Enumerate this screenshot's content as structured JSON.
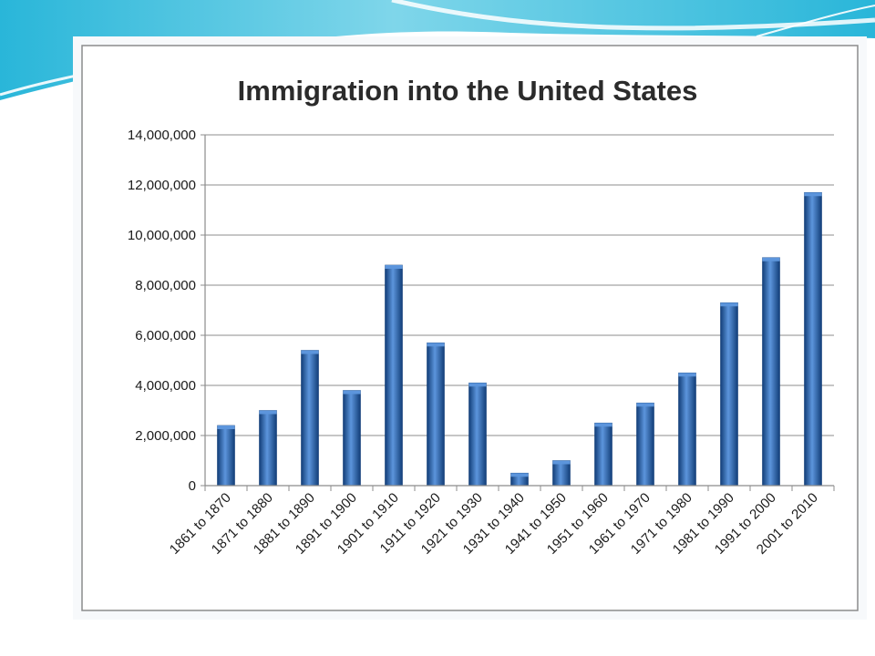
{
  "colors": {
    "bar_fill": "#1f5fb0",
    "bar_light": "#5c95dc",
    "bar_dark": "#123e78",
    "gridline": "#8c8c8c",
    "slide_accent": "#2fb8d8"
  },
  "chart_data": {
    "type": "bar",
    "title": "Immigration into the United States",
    "xlabel": "",
    "ylabel": "",
    "ylim": [
      0,
      14000000
    ],
    "yticks": [
      0,
      2000000,
      4000000,
      6000000,
      8000000,
      10000000,
      12000000,
      14000000
    ],
    "ytick_labels": [
      "0",
      "2,000,000",
      "4,000,000",
      "6,000,000",
      "8,000,000",
      "10,000,000",
      "12,000,000",
      "14,000,000"
    ],
    "grid": true,
    "legend": "none",
    "categories": [
      "1861 to 1870",
      "1871 to 1880",
      "1881 to 1890",
      "1891 to 1900",
      "1901 to 1910",
      "1911 to 1920",
      "1921 to 1930",
      "1931 to 1940",
      "1941 to 1950",
      "1951 to 1960",
      "1961 to 1970",
      "1971 to 1980",
      "1981 to 1990",
      "1991 to 2000",
      "2001 to 2010"
    ],
    "values": [
      2400000,
      3000000,
      5400000,
      3800000,
      8800000,
      5700000,
      4100000,
      500000,
      1000000,
      2500000,
      3300000,
      4500000,
      7300000,
      9100000,
      11700000
    ]
  }
}
